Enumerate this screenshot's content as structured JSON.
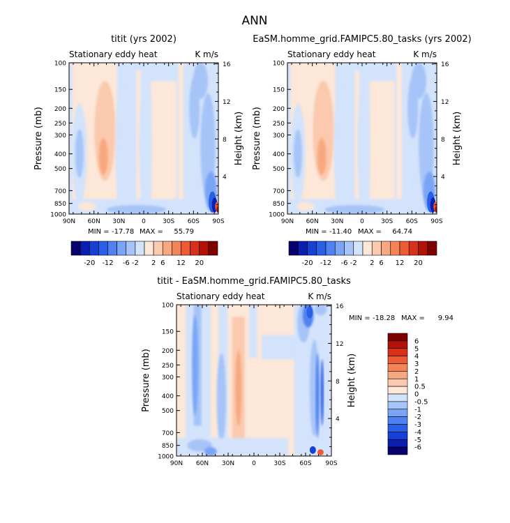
{
  "title": "ANN",
  "colors": {
    "neg": [
      "#08006e",
      "#0a1fb0",
      "#1640d6",
      "#2a5fe8",
      "#4f82f0",
      "#7aa4f5",
      "#a6c4f8",
      "#d3e3fb"
    ],
    "pos": [
      "#fce7d9",
      "#fbc9ad",
      "#f8a880",
      "#f48456",
      "#ec5b32",
      "#d9301a",
      "#b31208",
      "#7e0000"
    ]
  },
  "chart_data": [
    {
      "type": "heatmap",
      "id": "model1",
      "title": "titit (yrs 2002)",
      "subtitle_left": "Stationary eddy heat",
      "subtitle_right": "K m/s",
      "ylabel": "Pressure (mb)",
      "y2label": "Height (km)",
      "x_ticks": [
        "90N",
        "60N",
        "30N",
        "0",
        "30S",
        "60S",
        "90S"
      ],
      "y_ticks": [
        "100",
        "150",
        "200",
        "250",
        "300",
        "400",
        "500",
        "700",
        "850",
        "1000"
      ],
      "y2_ticks": [
        "16",
        "12",
        "8",
        "4"
      ],
      "stats": {
        "min_label": "MIN =",
        "min": "-17.78",
        "max_label": "MAX =",
        "max": "55.79"
      },
      "colorbar": {
        "labels": [
          "-20",
          "-12",
          "-6",
          "-2",
          "2",
          "6",
          "12",
          "20"
        ]
      }
    },
    {
      "type": "heatmap",
      "id": "model2",
      "title": "EaSM.homme_grid.FAMIPC5.80_tasks (yrs 2002)",
      "subtitle_left": "Stationary eddy heat",
      "subtitle_right": "K m/s",
      "ylabel": "Pressure (mb)",
      "y2label": "Height (km)",
      "x_ticks": [
        "90N",
        "60N",
        "30N",
        "0",
        "30S",
        "60S",
        "90S"
      ],
      "y_ticks": [
        "100",
        "150",
        "200",
        "250",
        "300",
        "400",
        "500",
        "700",
        "850",
        "1000"
      ],
      "y2_ticks": [
        "16",
        "12",
        "8",
        "4"
      ],
      "stats": {
        "min_label": "MIN =",
        "min": "-11.40",
        "max_label": "MAX =",
        "max": "64.74"
      },
      "colorbar": {
        "labels": [
          "-20",
          "-12",
          "-6",
          "-2",
          "2",
          "6",
          "12",
          "20"
        ]
      }
    },
    {
      "type": "heatmap",
      "id": "diff",
      "title": "titit - EaSM.homme_grid.FAMIPC5.80_tasks",
      "subtitle_left": "Stationary eddy heat",
      "subtitle_right": "K m/s",
      "ylabel": "Pressure (mb)",
      "y2label": "Height (km)",
      "x_ticks": [
        "90N",
        "60N",
        "30N",
        "0",
        "30S",
        "60S",
        "90S"
      ],
      "y_ticks": [
        "100",
        "150",
        "200",
        "250",
        "300",
        "400",
        "500",
        "700",
        "850",
        "1000"
      ],
      "y2_ticks": [
        "16",
        "12",
        "8",
        "4"
      ],
      "stats": {
        "min_label": "MIN =",
        "min": "-18.28",
        "max_label": "MAX =",
        "max": "9.94"
      },
      "colorbar": {
        "labels": [
          "6",
          "5",
          "4",
          "3",
          "2",
          "1",
          "0.5",
          "0",
          "-0.5",
          "-1",
          "-2",
          "-3",
          "-4",
          "-5",
          "-6"
        ]
      }
    }
  ]
}
